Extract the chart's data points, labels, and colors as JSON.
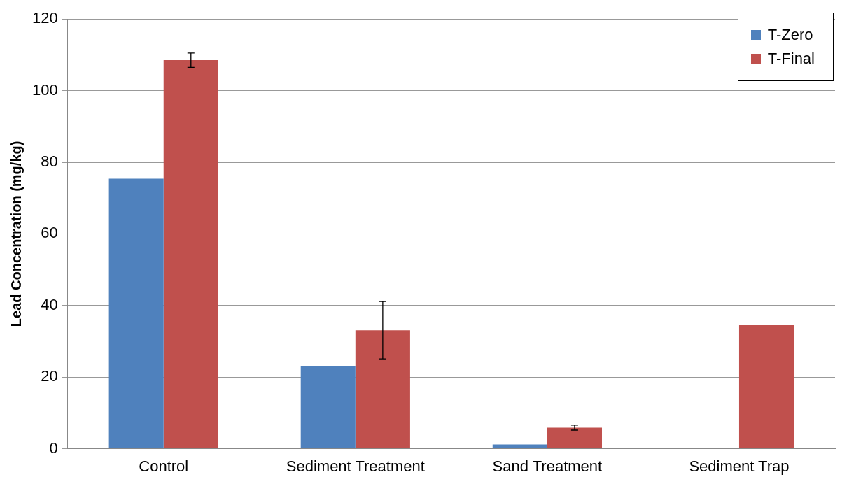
{
  "chart_data": {
    "type": "bar",
    "ylabel": "Lead Concentration (mg/kg)",
    "categories": [
      "Control",
      "Sediment Treatment",
      "Sand Treatment",
      "Sediment Trap"
    ],
    "series": [
      {
        "name": "T-Zero",
        "color": "#4f81bd",
        "values": [
          75.4,
          23.0,
          1.2,
          null
        ]
      },
      {
        "name": "T-Final",
        "color": "#c0504d",
        "values": [
          108.5,
          33.1,
          5.9,
          34.7
        ],
        "errors": [
          2,
          8,
          0.7,
          null
        ]
      }
    ],
    "ylim": [
      0,
      120
    ],
    "yticks": [
      0,
      20,
      40,
      60,
      80,
      100,
      120
    ],
    "grid": "y",
    "legend": "top right"
  }
}
